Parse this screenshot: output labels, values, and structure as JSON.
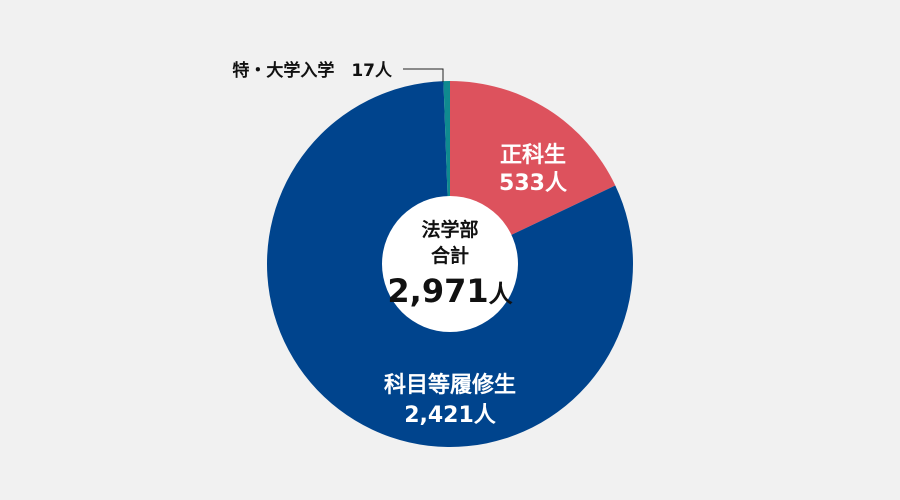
{
  "chart_data": {
    "type": "pie",
    "subtype": "donut",
    "categories": [
      "正科生",
      "科目等履修生",
      "特・大学入学"
    ],
    "values": [
      533,
      2421,
      17
    ],
    "value_labels": [
      "533人",
      "2,421人",
      "17人"
    ],
    "colors": [
      "#dd525d",
      "#00448d",
      "#0f8a8f"
    ],
    "center": {
      "line1": "法学部",
      "line2": "合計",
      "total": "2,971",
      "unit": "人"
    },
    "callout": "特・大学入学　17人"
  }
}
